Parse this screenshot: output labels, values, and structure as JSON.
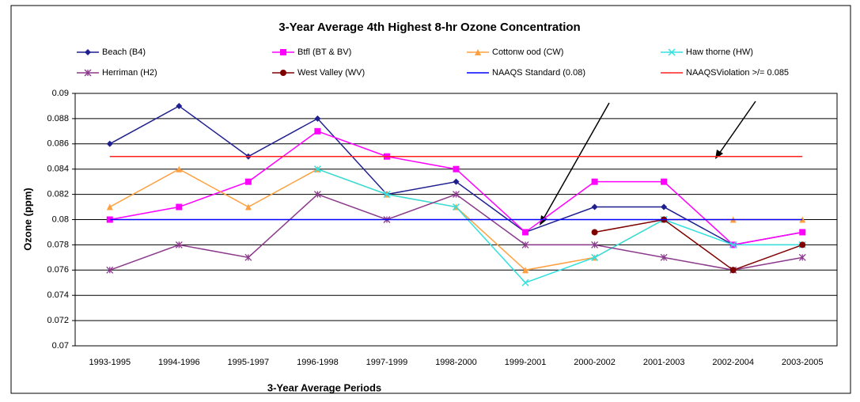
{
  "chart_data": {
    "type": "line",
    "title": "3-Year Average 4th Highest 8-hr Ozone Concentration",
    "x_label": "3-Year Average Periods",
    "y_label": "Ozone (ppm)",
    "categories": [
      "1993-1995",
      "1994-1996",
      "1995-1997",
      "1996-1998",
      "1997-1999",
      "1998-2000",
      "1999-2001",
      "2000-2002",
      "2001-2003",
      "2002-2004",
      "2003-2005"
    ],
    "ylim": [
      0.07,
      0.09
    ],
    "yticks": [
      0.07,
      0.072,
      0.074,
      0.076,
      0.078,
      0.08,
      0.082,
      0.084,
      0.086,
      0.088,
      0.09
    ],
    "grid": true,
    "series": [
      {
        "name": "Beach (B4)",
        "color": "#1f1f8f",
        "marker": "diamond",
        "values": [
          0.086,
          0.089,
          0.085,
          0.088,
          0.082,
          0.083,
          0.079,
          0.081,
          0.081,
          0.078,
          0.079
        ]
      },
      {
        "name": "Btfl (BT & BV)",
        "color": "#ff00ff",
        "marker": "square",
        "values": [
          0.08,
          0.081,
          0.083,
          0.087,
          0.085,
          0.084,
          0.079,
          0.083,
          0.083,
          0.078,
          0.079
        ]
      },
      {
        "name": "Cottonw ood (CW)",
        "color": "#ffa040",
        "marker": "triangle",
        "values": [
          0.081,
          0.084,
          0.081,
          0.084,
          0.082,
          0.081,
          0.076,
          0.077,
          0.08,
          0.08,
          0.08
        ]
      },
      {
        "name": "Haw thorne (HW)",
        "color": "#33e0e0",
        "marker": "x",
        "values": [
          null,
          null,
          null,
          0.084,
          0.082,
          0.081,
          0.075,
          0.077,
          0.08,
          0.078,
          0.078
        ]
      },
      {
        "name": "Herriman (H2)",
        "color": "#8b3a8b",
        "marker": "star",
        "values": [
          0.076,
          0.078,
          0.077,
          0.082,
          0.08,
          0.082,
          0.078,
          0.078,
          0.077,
          0.076,
          0.077
        ]
      },
      {
        "name": "West Valley (WV)",
        "color": "#800000",
        "marker": "circle",
        "values": [
          null,
          null,
          null,
          null,
          null,
          null,
          null,
          0.079,
          0.08,
          0.076,
          0.078
        ]
      },
      {
        "name": "NAAQS Standard (0.08)",
        "color": "#0000ff",
        "marker": "none",
        "values": [
          0.08,
          0.08,
          0.08,
          0.08,
          0.08,
          0.08,
          0.08,
          0.08,
          0.08,
          0.08,
          0.08
        ]
      },
      {
        "name": "NAAQSViolation >/= 0.085",
        "color": "#ff2020",
        "marker": "none",
        "values": [
          0.085,
          0.085,
          0.085,
          0.085,
          0.085,
          0.085,
          0.085,
          0.085,
          0.085,
          0.085,
          0.085
        ]
      }
    ]
  }
}
